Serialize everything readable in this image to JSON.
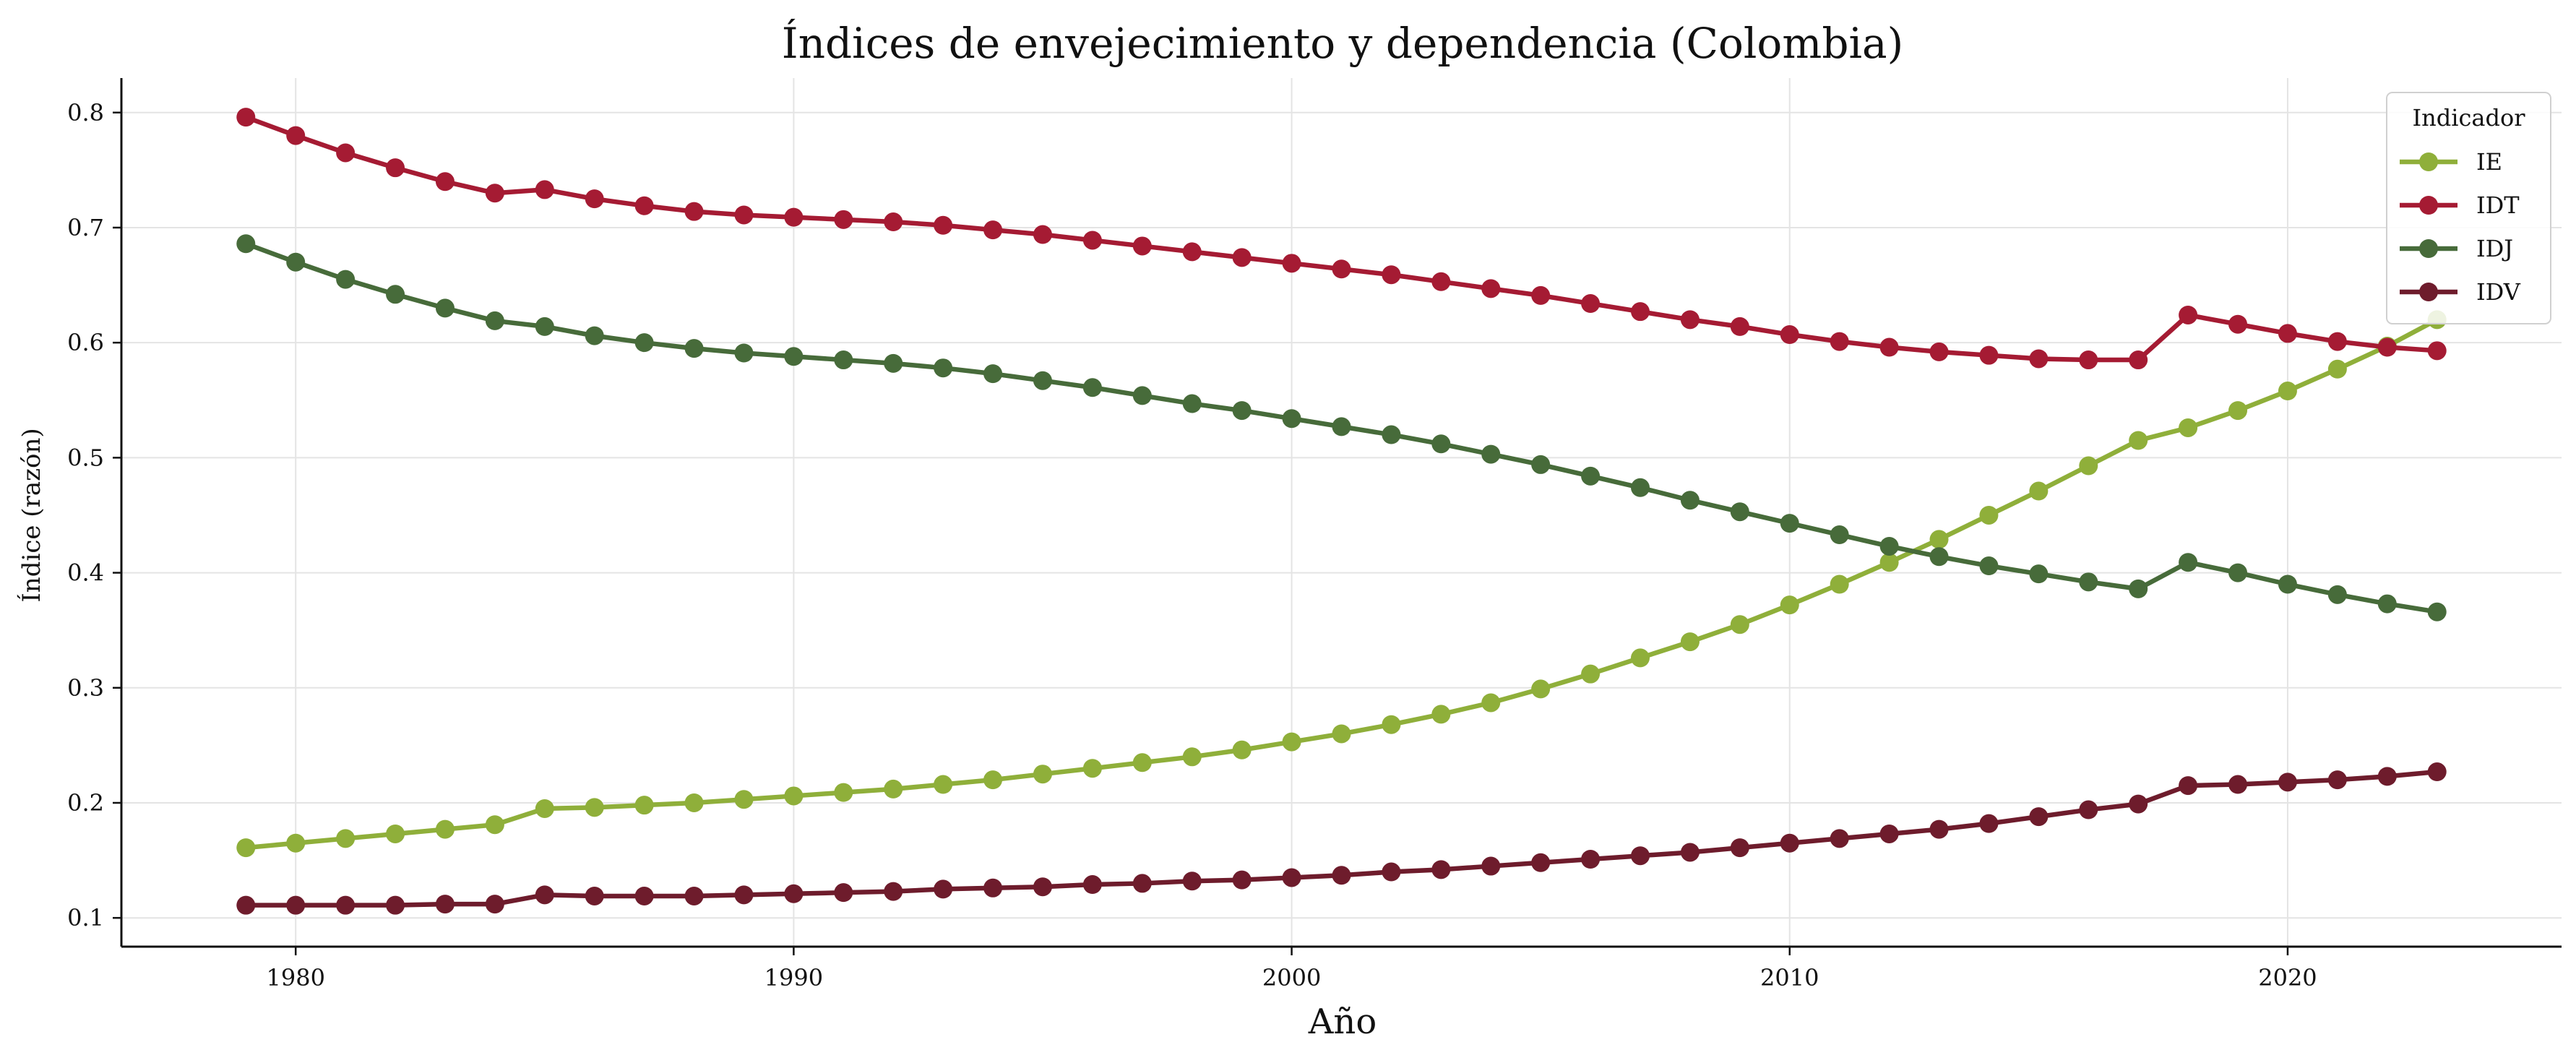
{
  "chart_data": {
    "type": "line",
    "title": "Índices de envejecimiento y dependencia (Colombia)",
    "xlabel": "Año",
    "ylabel": "Índice (razón)",
    "xlim": [
      1976.5,
      1981.5
    ],
    "ylim": [
      0.075,
      0.83
    ],
    "x_ticks": [
      1980,
      1990,
      2000,
      2010,
      2020
    ],
    "y_ticks": [
      0.1,
      0.2,
      0.3,
      0.4,
      0.5,
      0.6,
      0.7,
      0.8
    ],
    "grid": true,
    "legend": {
      "title": "Indicador",
      "placement": "top-right"
    },
    "x": [
      1979,
      1980,
      1981,
      1982,
      1983,
      1984,
      1985,
      1986,
      1987,
      1988,
      1989,
      1990,
      1991,
      1992,
      1993,
      1994,
      1995,
      1996,
      1997,
      1998,
      1999,
      2000,
      2001,
      2002,
      2003,
      2004,
      2005,
      2006,
      2007,
      2008,
      2009,
      2010,
      2011,
      2012,
      2013,
      2014,
      2015,
      2016,
      2017,
      2018,
      2019,
      2020,
      2021,
      2022,
      2023
    ],
    "series": [
      {
        "name": "IE",
        "color": "#8faf3a",
        "values": [
          0.161,
          0.165,
          0.169,
          0.173,
          0.177,
          0.181,
          0.195,
          0.196,
          0.198,
          0.2,
          0.203,
          0.206,
          0.209,
          0.212,
          0.216,
          0.22,
          0.225,
          0.23,
          0.235,
          0.24,
          0.246,
          0.253,
          0.26,
          0.268,
          0.277,
          0.287,
          0.299,
          0.312,
          0.326,
          0.34,
          0.355,
          0.372,
          0.39,
          0.409,
          0.429,
          0.45,
          0.471,
          0.493,
          0.515,
          0.526,
          0.541,
          0.558,
          0.577,
          0.597,
          0.62
        ]
      },
      {
        "name": "IDT",
        "color": "#a51b33",
        "values": [
          0.796,
          0.78,
          0.765,
          0.752,
          0.74,
          0.73,
          0.733,
          0.725,
          0.719,
          0.714,
          0.711,
          0.709,
          0.707,
          0.705,
          0.702,
          0.698,
          0.694,
          0.689,
          0.684,
          0.679,
          0.674,
          0.669,
          0.664,
          0.659,
          0.653,
          0.647,
          0.641,
          0.634,
          0.627,
          0.62,
          0.614,
          0.607,
          0.601,
          0.596,
          0.592,
          0.589,
          0.586,
          0.585,
          0.585,
          0.624,
          0.616,
          0.608,
          0.601,
          0.596,
          0.593
        ]
      },
      {
        "name": "IDJ",
        "color": "#476b3a",
        "values": [
          0.686,
          0.67,
          0.655,
          0.642,
          0.63,
          0.619,
          0.614,
          0.606,
          0.6,
          0.595,
          0.591,
          0.588,
          0.585,
          0.582,
          0.578,
          0.573,
          0.567,
          0.561,
          0.554,
          0.547,
          0.541,
          0.534,
          0.527,
          0.52,
          0.512,
          0.503,
          0.494,
          0.484,
          0.474,
          0.463,
          0.453,
          0.443,
          0.433,
          0.423,
          0.414,
          0.406,
          0.399,
          0.392,
          0.386,
          0.409,
          0.4,
          0.39,
          0.381,
          0.373,
          0.366
        ]
      },
      {
        "name": "IDV",
        "color": "#6e1c2c",
        "values": [
          0.111,
          0.111,
          0.111,
          0.111,
          0.112,
          0.112,
          0.12,
          0.119,
          0.119,
          0.119,
          0.12,
          0.121,
          0.122,
          0.123,
          0.125,
          0.126,
          0.127,
          0.129,
          0.13,
          0.132,
          0.133,
          0.135,
          0.137,
          0.14,
          0.142,
          0.145,
          0.148,
          0.151,
          0.154,
          0.157,
          0.161,
          0.165,
          0.169,
          0.173,
          0.177,
          0.182,
          0.188,
          0.194,
          0.199,
          0.215,
          0.216,
          0.218,
          0.22,
          0.223,
          0.227
        ]
      }
    ]
  }
}
